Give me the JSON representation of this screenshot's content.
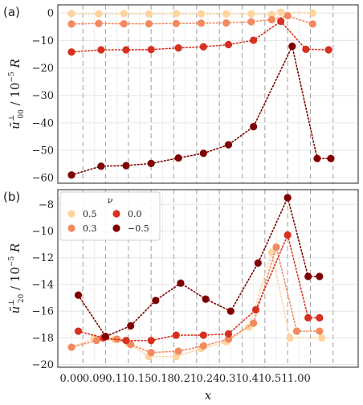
{
  "chart_data": [
    {
      "type": "scatter",
      "panel_label": "(a)",
      "ylabel_main": "ũ",
      "ylabel_sup": "⊥",
      "ylabel_sub": "00",
      "ylabel_rest": " / 10",
      "ylabel_exp": "−5",
      "ylabel_tail": " R",
      "ylim": [
        -62,
        3
      ],
      "yticks": [
        0,
        -10,
        -20,
        -30,
        -40,
        -50,
        -60
      ],
      "ytick_labels": [
        "0",
        "−10",
        "−20",
        "−30",
        "−40",
        "−50",
        "−60"
      ],
      "xlim": [
        -0.6,
        12.6
      ],
      "categories": [
        "0.00",
        "0.09",
        "0.11",
        "0.15",
        "0.18",
        "0.21",
        "0.24",
        "0.31",
        "0.41",
        "0.51",
        "1.00"
      ],
      "grid": true,
      "dividers": [
        0.5,
        1.5,
        2.5,
        3.5,
        4.5,
        5.5,
        6.5,
        7.5,
        8.5,
        9.5,
        10.5,
        11.5
      ],
      "series": [
        {
          "name": "0.5",
          "color": "#fdd49e",
          "x": [
            0,
            1.2,
            2.3,
            3.4,
            4.6,
            5.7,
            6.8,
            7.9,
            8.8,
            9.2,
            10.6
          ],
          "y": [
            -0.2,
            -0.3,
            -0.2,
            -0.3,
            -0.2,
            -0.3,
            -0.3,
            -0.3,
            -0.5,
            0.3,
            0
          ]
        },
        {
          "name": "0.3",
          "color": "#f4895f",
          "x": [
            0,
            1.2,
            2.3,
            3.4,
            4.6,
            5.7,
            6.8,
            7.9,
            8.8,
            9.5,
            10.6
          ],
          "y": [
            -4.0,
            -3.8,
            -3.9,
            -3.9,
            -3.8,
            -3.7,
            -3.6,
            -3.2,
            -2.4,
            -1.0,
            -4.0
          ]
        },
        {
          "name": "0.0",
          "color": "#d7301f",
          "x": [
            0,
            1.3,
            2.4,
            3.5,
            4.7,
            5.8,
            6.9,
            8.0,
            9.2,
            10.3,
            11.3
          ],
          "y": [
            -14.2,
            -13.4,
            -13.4,
            -13.3,
            -12.7,
            -12.3,
            -11.5,
            -9.9,
            -3.0,
            -13.2,
            -13.4
          ]
        },
        {
          "name": "−0.5",
          "color": "#7f0000",
          "x": [
            0,
            1.3,
            2.4,
            3.5,
            4.7,
            5.8,
            6.9,
            8.0,
            9.7,
            10.8,
            11.4
          ],
          "y": [
            -59.0,
            -55.8,
            -55.6,
            -54.8,
            -52.8,
            -51.1,
            -48.0,
            -41.4,
            -12.1,
            -53.0,
            -53.0
          ]
        }
      ]
    },
    {
      "type": "scatter",
      "panel_label": "(b)",
      "ylabel_main": "ũ",
      "ylabel_sup": "⊥",
      "ylabel_sub": "20",
      "ylabel_rest": " / 10",
      "ylabel_exp": "−5",
      "ylabel_tail": " R",
      "xlabel": "x",
      "ylim": [
        -20.2,
        -6.9
      ],
      "yticks": [
        -8,
        -10,
        -12,
        -14,
        -16,
        -18,
        -20
      ],
      "ytick_labels": [
        "−8",
        "−10",
        "−12",
        "−14",
        "−16",
        "−18",
        "−20"
      ],
      "xlim": [
        -0.6,
        12.6
      ],
      "categories": [
        "0.00",
        "0.09",
        "0.11",
        "0.15",
        "0.18",
        "0.21",
        "0.24",
        "0.31",
        "0.41",
        "0.51",
        "1.00"
      ],
      "grid": true,
      "dividers": [
        0.5,
        1.5,
        2.5,
        3.5,
        4.5,
        5.5,
        6.5,
        7.5,
        8.5,
        9.5,
        10.5,
        11.5
      ],
      "legend": {
        "title": "ν",
        "placement": "top-left"
      },
      "series": [
        {
          "name": "0.5",
          "color": "#fdd49e",
          "x": [
            0,
            1.0,
            1.9,
            2.5,
            3.4,
            4.6,
            5.7,
            6.8,
            7.8,
            8.8,
            9.6,
            11.0
          ],
          "y": [
            -18.7,
            -18.0,
            -18.1,
            -18.4,
            -19.4,
            -19.4,
            -18.8,
            -18.3,
            -17.2,
            -11.6,
            -18.0,
            -18.0
          ]
        },
        {
          "name": "0.3",
          "color": "#f4895f",
          "x": [
            0,
            1.1,
            2.0,
            2.6,
            3.5,
            4.7,
            5.8,
            6.9,
            8.0,
            9.0,
            9.9,
            10.9
          ],
          "y": [
            -18.7,
            -18.2,
            -18.1,
            -18.5,
            -19.1,
            -19.0,
            -18.6,
            -18.1,
            -16.9,
            -11.2,
            -17.5,
            -17.5
          ]
        },
        {
          "name": "0.0",
          "color": "#d7301f",
          "x": [
            0.3,
            1.4,
            2.4,
            3.5,
            4.6,
            5.8,
            6.9,
            8.1,
            9.5,
            10.4,
            10.9
          ],
          "y": [
            -17.5,
            -18.0,
            -18.2,
            -18.2,
            -17.8,
            -17.8,
            -17.7,
            -15.9,
            -10.3,
            -16.5,
            -16.5
          ]
        },
        {
          "name": "−0.5",
          "color": "#7f0000",
          "x": [
            0.3,
            1.5,
            2.6,
            3.7,
            4.8,
            5.9,
            7.0,
            8.2,
            9.5,
            10.4,
            10.9
          ],
          "y": [
            -14.8,
            -17.9,
            -17.1,
            -15.2,
            -13.9,
            -15.1,
            -16.0,
            -12.4,
            -7.5,
            -13.4,
            -13.4
          ]
        }
      ]
    }
  ]
}
